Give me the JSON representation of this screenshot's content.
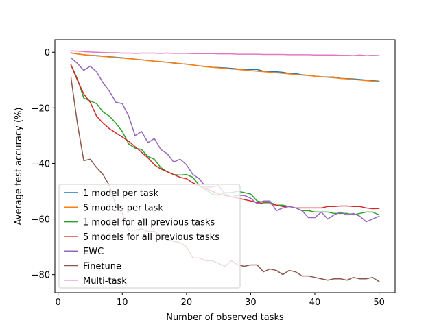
{
  "chart_data": {
    "type": "line",
    "title": "",
    "xlabel": "Number of observed tasks",
    "ylabel": "Average test accuracy (%)",
    "xlim": [
      -0.5,
      52.5
    ],
    "ylim": [
      -86.5,
      4.5
    ],
    "xticks": [
      0,
      10,
      20,
      30,
      40,
      50
    ],
    "yticks": [
      0,
      -20,
      -40,
      -60,
      -80
    ],
    "grid": false,
    "legend_position": "lower-left",
    "x": [
      2,
      3,
      4,
      5,
      6,
      7,
      8,
      9,
      10,
      11,
      12,
      13,
      14,
      15,
      16,
      17,
      18,
      19,
      20,
      21,
      22,
      23,
      24,
      25,
      26,
      27,
      28,
      29,
      30,
      31,
      32,
      33,
      34,
      35,
      36,
      37,
      38,
      39,
      40,
      41,
      42,
      43,
      44,
      45,
      46,
      47,
      48,
      49,
      50
    ],
    "series": [
      {
        "name": "1 model per task",
        "color": "#1f77b4",
        "values": [
          -0.2,
          -0.6,
          -0.9,
          -1.1,
          -1.2,
          -1.4,
          -1.6,
          -1.8,
          -2.0,
          -2.2,
          -2.5,
          -2.7,
          -3.0,
          -3.2,
          -3.4,
          -3.6,
          -3.9,
          -4.1,
          -4.3,
          -4.6,
          -4.9,
          -5.1,
          -5.4,
          -5.5,
          -5.6,
          -5.8,
          -6.0,
          -6.1,
          -6.2,
          -6.2,
          -6.8,
          -6.9,
          -7.0,
          -7.2,
          -7.6,
          -7.7,
          -8.1,
          -8.3,
          -8.6,
          -8.8,
          -8.9,
          -8.9,
          -9.4,
          -9.5,
          -9.6,
          -9.8,
          -10.0,
          -10.2,
          -10.4
        ]
      },
      {
        "name": "5 models per task",
        "color": "#ff7f0e",
        "values": [
          -0.3,
          -0.6,
          -0.9,
          -1.1,
          -1.3,
          -1.5,
          -1.7,
          -1.9,
          -2.1,
          -2.3,
          -2.5,
          -2.7,
          -3.0,
          -3.2,
          -3.4,
          -3.6,
          -3.8,
          -4.1,
          -4.3,
          -4.6,
          -4.9,
          -5.2,
          -5.4,
          -5.6,
          -5.8,
          -6.0,
          -6.2,
          -6.4,
          -6.6,
          -6.8,
          -7.0,
          -7.2,
          -7.4,
          -7.6,
          -7.8,
          -8.0,
          -8.2,
          -8.4,
          -8.6,
          -8.8,
          -9.0,
          -9.2,
          -9.4,
          -9.6,
          -9.8,
          -10.0,
          -10.2,
          -10.4,
          -10.6
        ]
      },
      {
        "name": "1 model for all previous tasks",
        "color": "#2ca02c",
        "values": [
          -4.5,
          -9.5,
          -16.5,
          -17.5,
          -18.5,
          -21.5,
          -23.0,
          -25.5,
          -28.5,
          -33.0,
          -34.5,
          -35.0,
          -37.5,
          -38.5,
          -41.5,
          -43.0,
          -44.0,
          -44.2,
          -44.0,
          -45.0,
          -48.0,
          -49.5,
          -51.0,
          -51.5,
          -50.5,
          -50.5,
          -50.0,
          -50.5,
          -51.0,
          -53.5,
          -54.0,
          -54.0,
          -55.0,
          -55.0,
          -55.5,
          -56.0,
          -57.0,
          -57.0,
          -57.5,
          -57.5,
          -57.5,
          -58.0,
          -58.0,
          -58.0,
          -58.5,
          -58.0,
          -57.5,
          -57.5,
          -58.5
        ]
      },
      {
        "name": "5 models for all previous tasks",
        "color": "#d62728",
        "values": [
          -4.5,
          -10.0,
          -15.0,
          -18.0,
          -23.0,
          -25.5,
          -27.5,
          -29.0,
          -30.5,
          -32.0,
          -34.0,
          -36.0,
          -38.0,
          -40.5,
          -42.0,
          -43.0,
          -44.0,
          -45.0,
          -45.5,
          -47.0,
          -48.0,
          -49.0,
          -50.0,
          -51.0,
          -51.5,
          -52.0,
          -52.5,
          -53.0,
          -53.5,
          -54.0,
          -54.5,
          -54.5,
          -55.0,
          -55.5,
          -55.5,
          -56.0,
          -56.0,
          -56.0,
          -56.0,
          -56.0,
          -55.5,
          -55.5,
          -55.3,
          -55.3,
          -55.5,
          -55.5,
          -56.0,
          -56.3,
          -56.2
        ]
      },
      {
        "name": "EWC",
        "color": "#9467bd",
        "values": [
          -2.0,
          -4.0,
          -6.5,
          -5.0,
          -7.0,
          -11.0,
          -14.0,
          -18.0,
          -18.5,
          -23.0,
          -30.0,
          -28.5,
          -32.5,
          -31.0,
          -35.0,
          -36.5,
          -39.5,
          -38.5,
          -40.5,
          -44.0,
          -45.5,
          -48.5,
          -48.5,
          -48.0,
          -51.0,
          -52.0,
          -51.5,
          -51.5,
          -52.5,
          -54.5,
          -53.5,
          -53.5,
          -57.0,
          -56.0,
          -55.5,
          -56.0,
          -57.0,
          -59.5,
          -59.5,
          -57.5,
          -60.0,
          -58.5,
          -57.5,
          -58.5,
          -58.0,
          -59.0,
          -61.0,
          -60.0,
          -59.0
        ]
      },
      {
        "name": "Finetune",
        "color": "#8c564b",
        "values": [
          -9.0,
          -25.5,
          -39.0,
          -38.5,
          -41.5,
          -44.0,
          -48.0,
          -55.0,
          -58.0,
          -64.0,
          -64.0,
          -63.5,
          -64.5,
          -64.5,
          -66.0,
          -67.5,
          -68.0,
          -68.5,
          -70.0,
          -74.0,
          -74.0,
          -75.0,
          -75.0,
          -76.0,
          -77.0,
          -75.0,
          -76.5,
          -77.0,
          -76.5,
          -76.5,
          -79.0,
          -78.0,
          -78.5,
          -80.0,
          -78.5,
          -79.0,
          -80.5,
          -80.5,
          -81.0,
          -81.5,
          -82.0,
          -81.5,
          -81.5,
          -82.0,
          -81.0,
          -81.5,
          -81.5,
          -81.0,
          -82.5
        ]
      },
      {
        "name": "Multi-task",
        "color": "#e377c2",
        "values": [
          0.5,
          0.4,
          0.2,
          0.1,
          0.0,
          -0.1,
          -0.2,
          -0.2,
          -0.3,
          -0.3,
          -0.4,
          -0.3,
          -0.3,
          -0.3,
          -0.4,
          -0.3,
          -0.4,
          -0.4,
          -0.4,
          -0.5,
          -0.5,
          -0.5,
          -0.5,
          -0.6,
          -0.6,
          -0.6,
          -0.7,
          -0.7,
          -0.7,
          -0.7,
          -0.8,
          -0.8,
          -0.8,
          -0.8,
          -0.9,
          -0.9,
          -0.9,
          -0.9,
          -1.0,
          -1.0,
          -1.0,
          -1.0,
          -1.1,
          -1.1,
          -1.2,
          -1.0,
          -1.2,
          -1.1,
          -1.2
        ]
      }
    ]
  }
}
